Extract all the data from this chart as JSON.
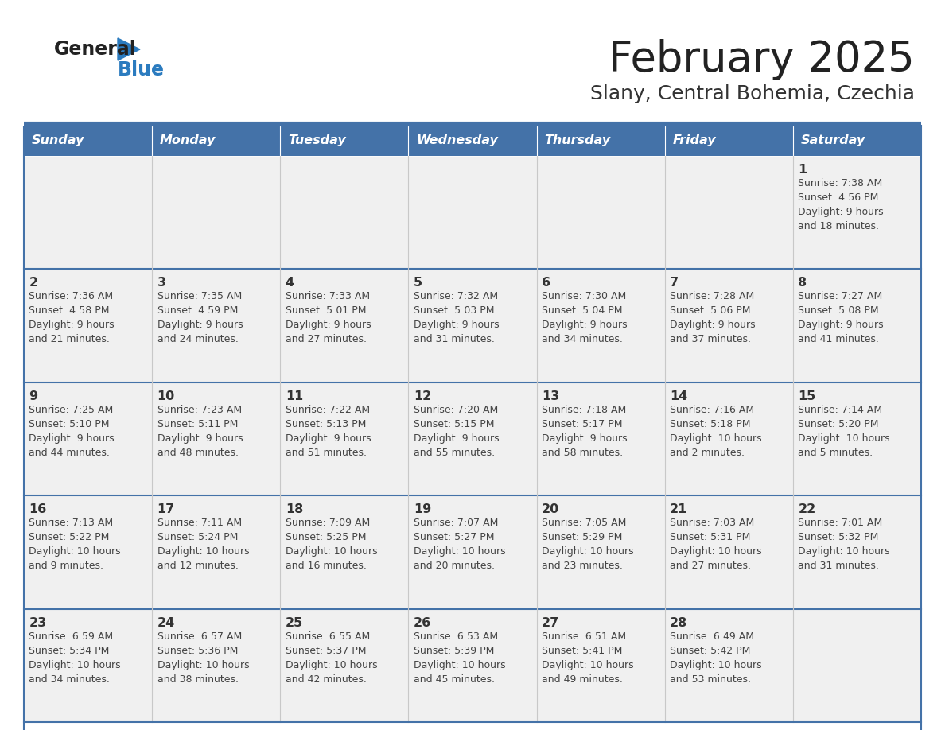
{
  "title": "February 2025",
  "subtitle": "Slany, Central Bohemia, Czechia",
  "header_bg": "#4472a8",
  "header_text": "#ffffff",
  "cell_bg": "#f0f0f0",
  "row_separator_color": "#4472a8",
  "col_separator_color": "#c8c8c8",
  "outer_border_color": "#4472a8",
  "day_num_color": "#333333",
  "info_color": "#444444",
  "day_headers": [
    "Sunday",
    "Monday",
    "Tuesday",
    "Wednesday",
    "Thursday",
    "Friday",
    "Saturday"
  ],
  "logo_general_color": "#222222",
  "logo_blue_color": "#2b7bbf",
  "logo_triangle_color": "#2b7bbf",
  "title_color": "#222222",
  "subtitle_color": "#333333",
  "calendar_data": [
    [
      {
        "day": null,
        "info": ""
      },
      {
        "day": null,
        "info": ""
      },
      {
        "day": null,
        "info": ""
      },
      {
        "day": null,
        "info": ""
      },
      {
        "day": null,
        "info": ""
      },
      {
        "day": null,
        "info": ""
      },
      {
        "day": "1",
        "info": "Sunrise: 7:38 AM\nSunset: 4:56 PM\nDaylight: 9 hours\nand 18 minutes."
      }
    ],
    [
      {
        "day": "2",
        "info": "Sunrise: 7:36 AM\nSunset: 4:58 PM\nDaylight: 9 hours\nand 21 minutes."
      },
      {
        "day": "3",
        "info": "Sunrise: 7:35 AM\nSunset: 4:59 PM\nDaylight: 9 hours\nand 24 minutes."
      },
      {
        "day": "4",
        "info": "Sunrise: 7:33 AM\nSunset: 5:01 PM\nDaylight: 9 hours\nand 27 minutes."
      },
      {
        "day": "5",
        "info": "Sunrise: 7:32 AM\nSunset: 5:03 PM\nDaylight: 9 hours\nand 31 minutes."
      },
      {
        "day": "6",
        "info": "Sunrise: 7:30 AM\nSunset: 5:04 PM\nDaylight: 9 hours\nand 34 minutes."
      },
      {
        "day": "7",
        "info": "Sunrise: 7:28 AM\nSunset: 5:06 PM\nDaylight: 9 hours\nand 37 minutes."
      },
      {
        "day": "8",
        "info": "Sunrise: 7:27 AM\nSunset: 5:08 PM\nDaylight: 9 hours\nand 41 minutes."
      }
    ],
    [
      {
        "day": "9",
        "info": "Sunrise: 7:25 AM\nSunset: 5:10 PM\nDaylight: 9 hours\nand 44 minutes."
      },
      {
        "day": "10",
        "info": "Sunrise: 7:23 AM\nSunset: 5:11 PM\nDaylight: 9 hours\nand 48 minutes."
      },
      {
        "day": "11",
        "info": "Sunrise: 7:22 AM\nSunset: 5:13 PM\nDaylight: 9 hours\nand 51 minutes."
      },
      {
        "day": "12",
        "info": "Sunrise: 7:20 AM\nSunset: 5:15 PM\nDaylight: 9 hours\nand 55 minutes."
      },
      {
        "day": "13",
        "info": "Sunrise: 7:18 AM\nSunset: 5:17 PM\nDaylight: 9 hours\nand 58 minutes."
      },
      {
        "day": "14",
        "info": "Sunrise: 7:16 AM\nSunset: 5:18 PM\nDaylight: 10 hours\nand 2 minutes."
      },
      {
        "day": "15",
        "info": "Sunrise: 7:14 AM\nSunset: 5:20 PM\nDaylight: 10 hours\nand 5 minutes."
      }
    ],
    [
      {
        "day": "16",
        "info": "Sunrise: 7:13 AM\nSunset: 5:22 PM\nDaylight: 10 hours\nand 9 minutes."
      },
      {
        "day": "17",
        "info": "Sunrise: 7:11 AM\nSunset: 5:24 PM\nDaylight: 10 hours\nand 12 minutes."
      },
      {
        "day": "18",
        "info": "Sunrise: 7:09 AM\nSunset: 5:25 PM\nDaylight: 10 hours\nand 16 minutes."
      },
      {
        "day": "19",
        "info": "Sunrise: 7:07 AM\nSunset: 5:27 PM\nDaylight: 10 hours\nand 20 minutes."
      },
      {
        "day": "20",
        "info": "Sunrise: 7:05 AM\nSunset: 5:29 PM\nDaylight: 10 hours\nand 23 minutes."
      },
      {
        "day": "21",
        "info": "Sunrise: 7:03 AM\nSunset: 5:31 PM\nDaylight: 10 hours\nand 27 minutes."
      },
      {
        "day": "22",
        "info": "Sunrise: 7:01 AM\nSunset: 5:32 PM\nDaylight: 10 hours\nand 31 minutes."
      }
    ],
    [
      {
        "day": "23",
        "info": "Sunrise: 6:59 AM\nSunset: 5:34 PM\nDaylight: 10 hours\nand 34 minutes."
      },
      {
        "day": "24",
        "info": "Sunrise: 6:57 AM\nSunset: 5:36 PM\nDaylight: 10 hours\nand 38 minutes."
      },
      {
        "day": "25",
        "info": "Sunrise: 6:55 AM\nSunset: 5:37 PM\nDaylight: 10 hours\nand 42 minutes."
      },
      {
        "day": "26",
        "info": "Sunrise: 6:53 AM\nSunset: 5:39 PM\nDaylight: 10 hours\nand 45 minutes."
      },
      {
        "day": "27",
        "info": "Sunrise: 6:51 AM\nSunset: 5:41 PM\nDaylight: 10 hours\nand 49 minutes."
      },
      {
        "day": "28",
        "info": "Sunrise: 6:49 AM\nSunset: 5:42 PM\nDaylight: 10 hours\nand 53 minutes."
      },
      {
        "day": null,
        "info": ""
      }
    ]
  ]
}
